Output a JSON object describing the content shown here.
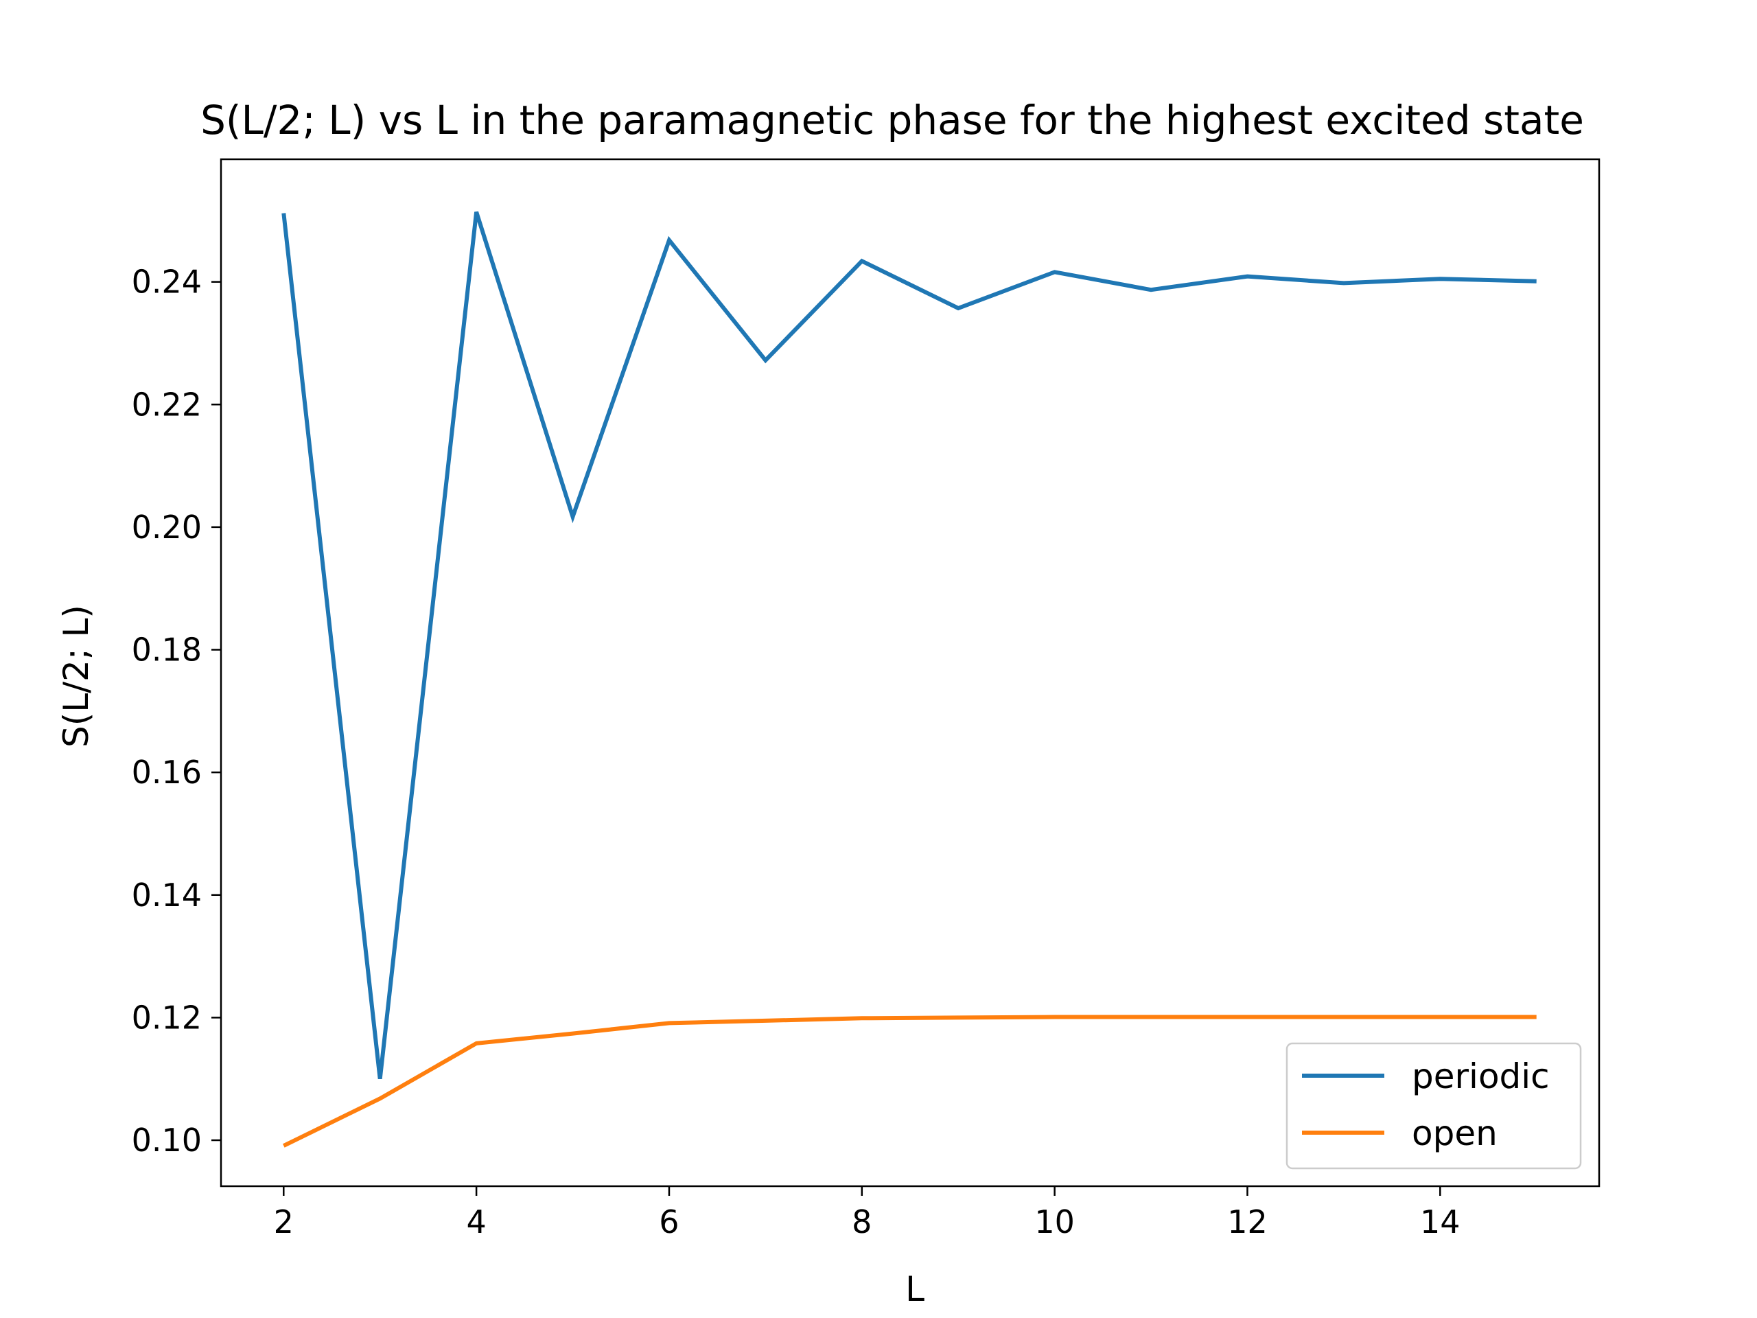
{
  "chart_data": {
    "type": "line",
    "title": "S(L/2; L) vs L in the paramagnetic phase for the highest excited state",
    "xlabel": "L",
    "ylabel": "S(L/2; L)",
    "x": [
      2,
      3,
      4,
      5,
      6,
      7,
      8,
      9,
      10,
      11,
      12,
      13,
      14,
      15
    ],
    "xlim": [
      1.35,
      15.65
    ],
    "ylim": [
      0.0925,
      0.26
    ],
    "xticks": [
      2,
      4,
      6,
      8,
      10,
      12,
      14
    ],
    "xtick_labels": [
      "2",
      "4",
      "6",
      "8",
      "10",
      "12",
      "14"
    ],
    "yticks": [
      0.1,
      0.12,
      0.14,
      0.16,
      0.18,
      0.2,
      0.22,
      0.24
    ],
    "ytick_labels": [
      "0.10",
      "0.12",
      "0.14",
      "0.16",
      "0.18",
      "0.20",
      "0.22",
      "0.24"
    ],
    "grid": false,
    "legend_position": "lower-right",
    "series": [
      {
        "name": "periodic",
        "color": "#1f77b4",
        "values": [
          0.2512,
          0.11,
          0.2514,
          0.2017,
          0.2468,
          0.2272,
          0.2434,
          0.2357,
          0.2416,
          0.2387,
          0.2409,
          0.2398,
          0.2405,
          0.2401
        ]
      },
      {
        "name": "open",
        "color": "#ff7f0e",
        "values": [
          0.0991,
          0.1068,
          0.1158,
          0.1174,
          0.1191,
          0.1195,
          0.1199,
          0.12,
          0.1201,
          0.1201,
          0.1201,
          0.1201,
          0.1201,
          0.1201
        ]
      }
    ]
  }
}
